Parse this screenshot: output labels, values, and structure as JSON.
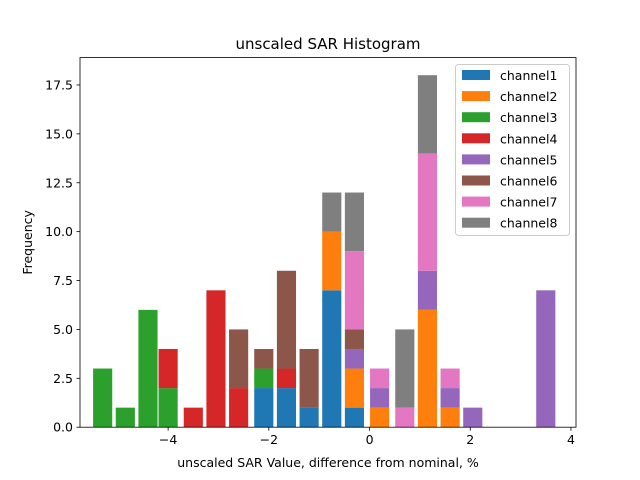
{
  "chart_data": {
    "type": "bar",
    "stacked": true,
    "title": "unscaled SAR Histogram",
    "xlabel": "unscaled SAR Value, difference from nominal, %",
    "ylabel": "Frequency",
    "xlim": [
      -5.75,
      4.1
    ],
    "ylim": [
      0,
      18.9
    ],
    "bar_width": 0.38,
    "xticks": [
      {
        "value": -4,
        "label": "−4"
      },
      {
        "value": -2,
        "label": "−2"
      },
      {
        "value": 0,
        "label": "0"
      },
      {
        "value": 2,
        "label": "2"
      },
      {
        "value": 4,
        "label": "4"
      }
    ],
    "yticks": [
      {
        "value": 0,
        "label": "0.0"
      },
      {
        "value": 2.5,
        "label": "2.5"
      },
      {
        "value": 5,
        "label": "5.0"
      },
      {
        "value": 7.5,
        "label": "7.5"
      },
      {
        "value": 10,
        "label": "10.0"
      },
      {
        "value": 12.5,
        "label": "12.5"
      },
      {
        "value": 15,
        "label": "15.0"
      },
      {
        "value": 17.5,
        "label": "17.5"
      }
    ],
    "legend_position": "top-right",
    "series": [
      {
        "name": "channel1",
        "color": "#1f77b4",
        "points": [
          [
            -2.1,
            0,
            2
          ],
          [
            -1.65,
            0,
            2
          ],
          [
            -1.2,
            0,
            1
          ],
          [
            -0.75,
            0,
            7
          ],
          [
            -0.3,
            0,
            1
          ]
        ]
      },
      {
        "name": "channel2",
        "color": "#ff7f0e",
        "points": [
          [
            -0.75,
            7,
            10
          ],
          [
            -0.3,
            1,
            3
          ],
          [
            0.2,
            0,
            1
          ],
          [
            1.15,
            0,
            6
          ],
          [
            1.6,
            0,
            1
          ]
        ]
      },
      {
        "name": "channel3",
        "color": "#2ca02c",
        "points": [
          [
            -5.3,
            0,
            3
          ],
          [
            -4.85,
            0,
            1
          ],
          [
            -4.4,
            0,
            6
          ],
          [
            -4.0,
            0,
            2
          ],
          [
            -2.1,
            2,
            3
          ]
        ]
      },
      {
        "name": "channel4",
        "color": "#d62728",
        "points": [
          [
            -4.0,
            2,
            4
          ],
          [
            -3.5,
            0,
            1
          ],
          [
            -3.05,
            0,
            7
          ],
          [
            -2.6,
            0,
            2
          ],
          [
            -1.65,
            2,
            3
          ]
        ]
      },
      {
        "name": "channel5",
        "color": "#9467bd",
        "points": [
          [
            -0.3,
            3,
            4
          ],
          [
            0.2,
            1,
            2
          ],
          [
            1.15,
            6,
            8
          ],
          [
            1.6,
            1,
            2
          ],
          [
            2.05,
            0,
            1
          ],
          [
            3.5,
            0,
            7
          ]
        ]
      },
      {
        "name": "channel6",
        "color": "#8c564b",
        "points": [
          [
            -2.6,
            2,
            5
          ],
          [
            -2.1,
            3,
            4
          ],
          [
            -1.65,
            3,
            8
          ],
          [
            -1.2,
            1,
            4
          ],
          [
            -0.3,
            4,
            5
          ]
        ]
      },
      {
        "name": "channel7",
        "color": "#e377c2",
        "points": [
          [
            -0.3,
            5,
            9
          ],
          [
            0.2,
            2,
            3
          ],
          [
            0.7,
            0,
            1
          ],
          [
            1.15,
            8,
            14
          ],
          [
            1.6,
            2,
            3
          ]
        ]
      },
      {
        "name": "channel8",
        "color": "#7f7f7f",
        "points": [
          [
            -0.75,
            10,
            12
          ],
          [
            -0.3,
            9,
            12
          ],
          [
            0.7,
            1,
            5
          ],
          [
            1.15,
            14,
            18
          ]
        ]
      }
    ]
  }
}
